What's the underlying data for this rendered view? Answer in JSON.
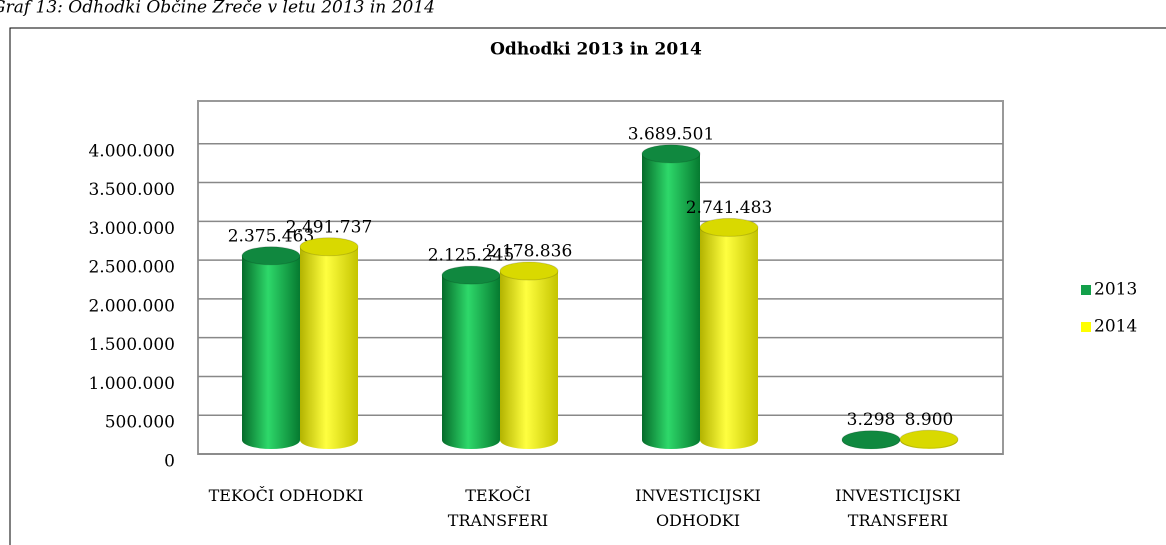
{
  "caption": "Graf 13: Odhodki Občine Zreče v letu 2013 in 2014",
  "chart_data": {
    "type": "bar",
    "title": "Odhodki  2013 in 2014",
    "categories": [
      "TEKOČI ODHODKI",
      "TEKOČI\nTRANSFERI",
      "INVESTICIJSKI\nODHODKI",
      "INVESTICIJSKI\nTRANSFERI"
    ],
    "series": [
      {
        "name": "2013",
        "color": "#13a04a",
        "values": [
          2375463,
          2125245,
          3689501,
          3298
        ],
        "value_labels": [
          "2.375.463",
          "2.125.245",
          "3.689.501",
          "3.298"
        ]
      },
      {
        "name": "2014",
        "color": "#ffff00",
        "values": [
          2491737,
          2178836,
          2741483,
          8900
        ],
        "value_labels": [
          "2.491.737",
          "2.178.836",
          "2.741.483",
          "8.900"
        ]
      }
    ],
    "ylim": [
      0,
      4500000
    ],
    "yticks": [
      0,
      {
        "value": 500000,
        "label": "500.000"
      },
      {
        "value": 1000000,
        "label": "1.000.000"
      },
      {
        "value": 1500000,
        "label": "1.500.000"
      },
      {
        "value": 2000000,
        "label": "2.000.000"
      },
      {
        "value": 2500000,
        "label": "2.500.000"
      },
      {
        "value": 3000000,
        "label": "3.000.000"
      },
      {
        "value": 3500000,
        "label": "3.500.000"
      },
      {
        "value": 4000000,
        "label": "4.000.000"
      }
    ],
    "grid": true,
    "legend": "right"
  }
}
